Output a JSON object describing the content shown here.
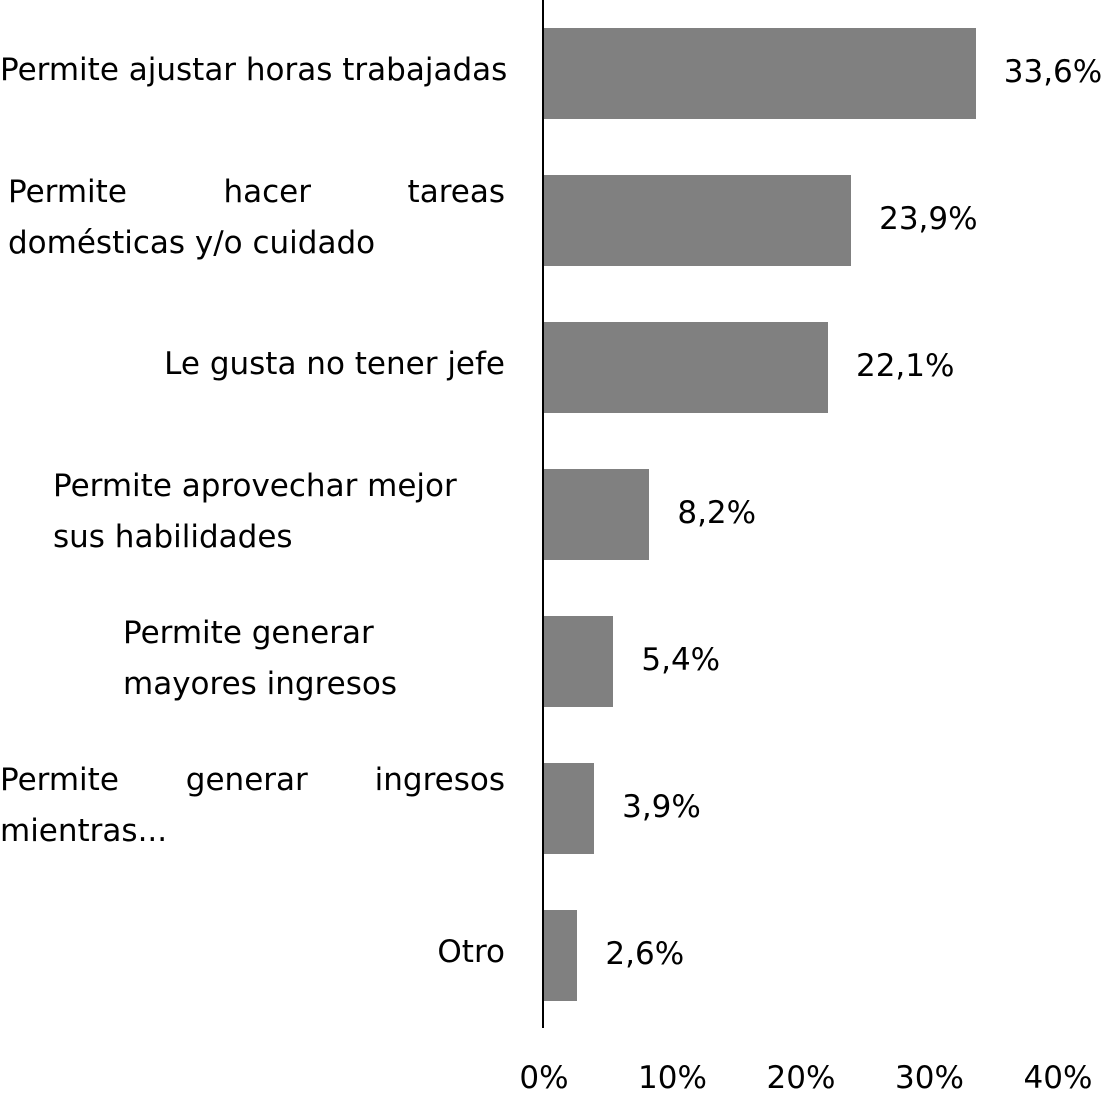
{
  "chart_data": {
    "type": "bar",
    "orientation": "horizontal",
    "categories": [
      "Permite ajustar horas trabajadas",
      "Permite hacer tareas domésticas y/o cuidado",
      "Le gusta no tener jefe",
      "Permite aprovechar mejor sus habilidades",
      "Permite generar mayores ingresos",
      "Permite generar ingresos mientras...",
      "Otro"
    ],
    "values": [
      33.6,
      23.9,
      22.1,
      8.2,
      5.4,
      3.9,
      2.6
    ],
    "data_labels": [
      "33,6%",
      "23,9%",
      "22,1%",
      "8,2%",
      "5,4%",
      "3,9%",
      "2,6%"
    ],
    "x_ticks": [
      0,
      10,
      20,
      30,
      40
    ],
    "x_tick_labels": [
      "0%",
      "10%",
      "20%",
      "30%",
      "40%"
    ],
    "xlim": [
      0,
      40
    ],
    "grid": false,
    "legend": "none",
    "bar_color": "#808080",
    "axis_color": "#000000"
  }
}
